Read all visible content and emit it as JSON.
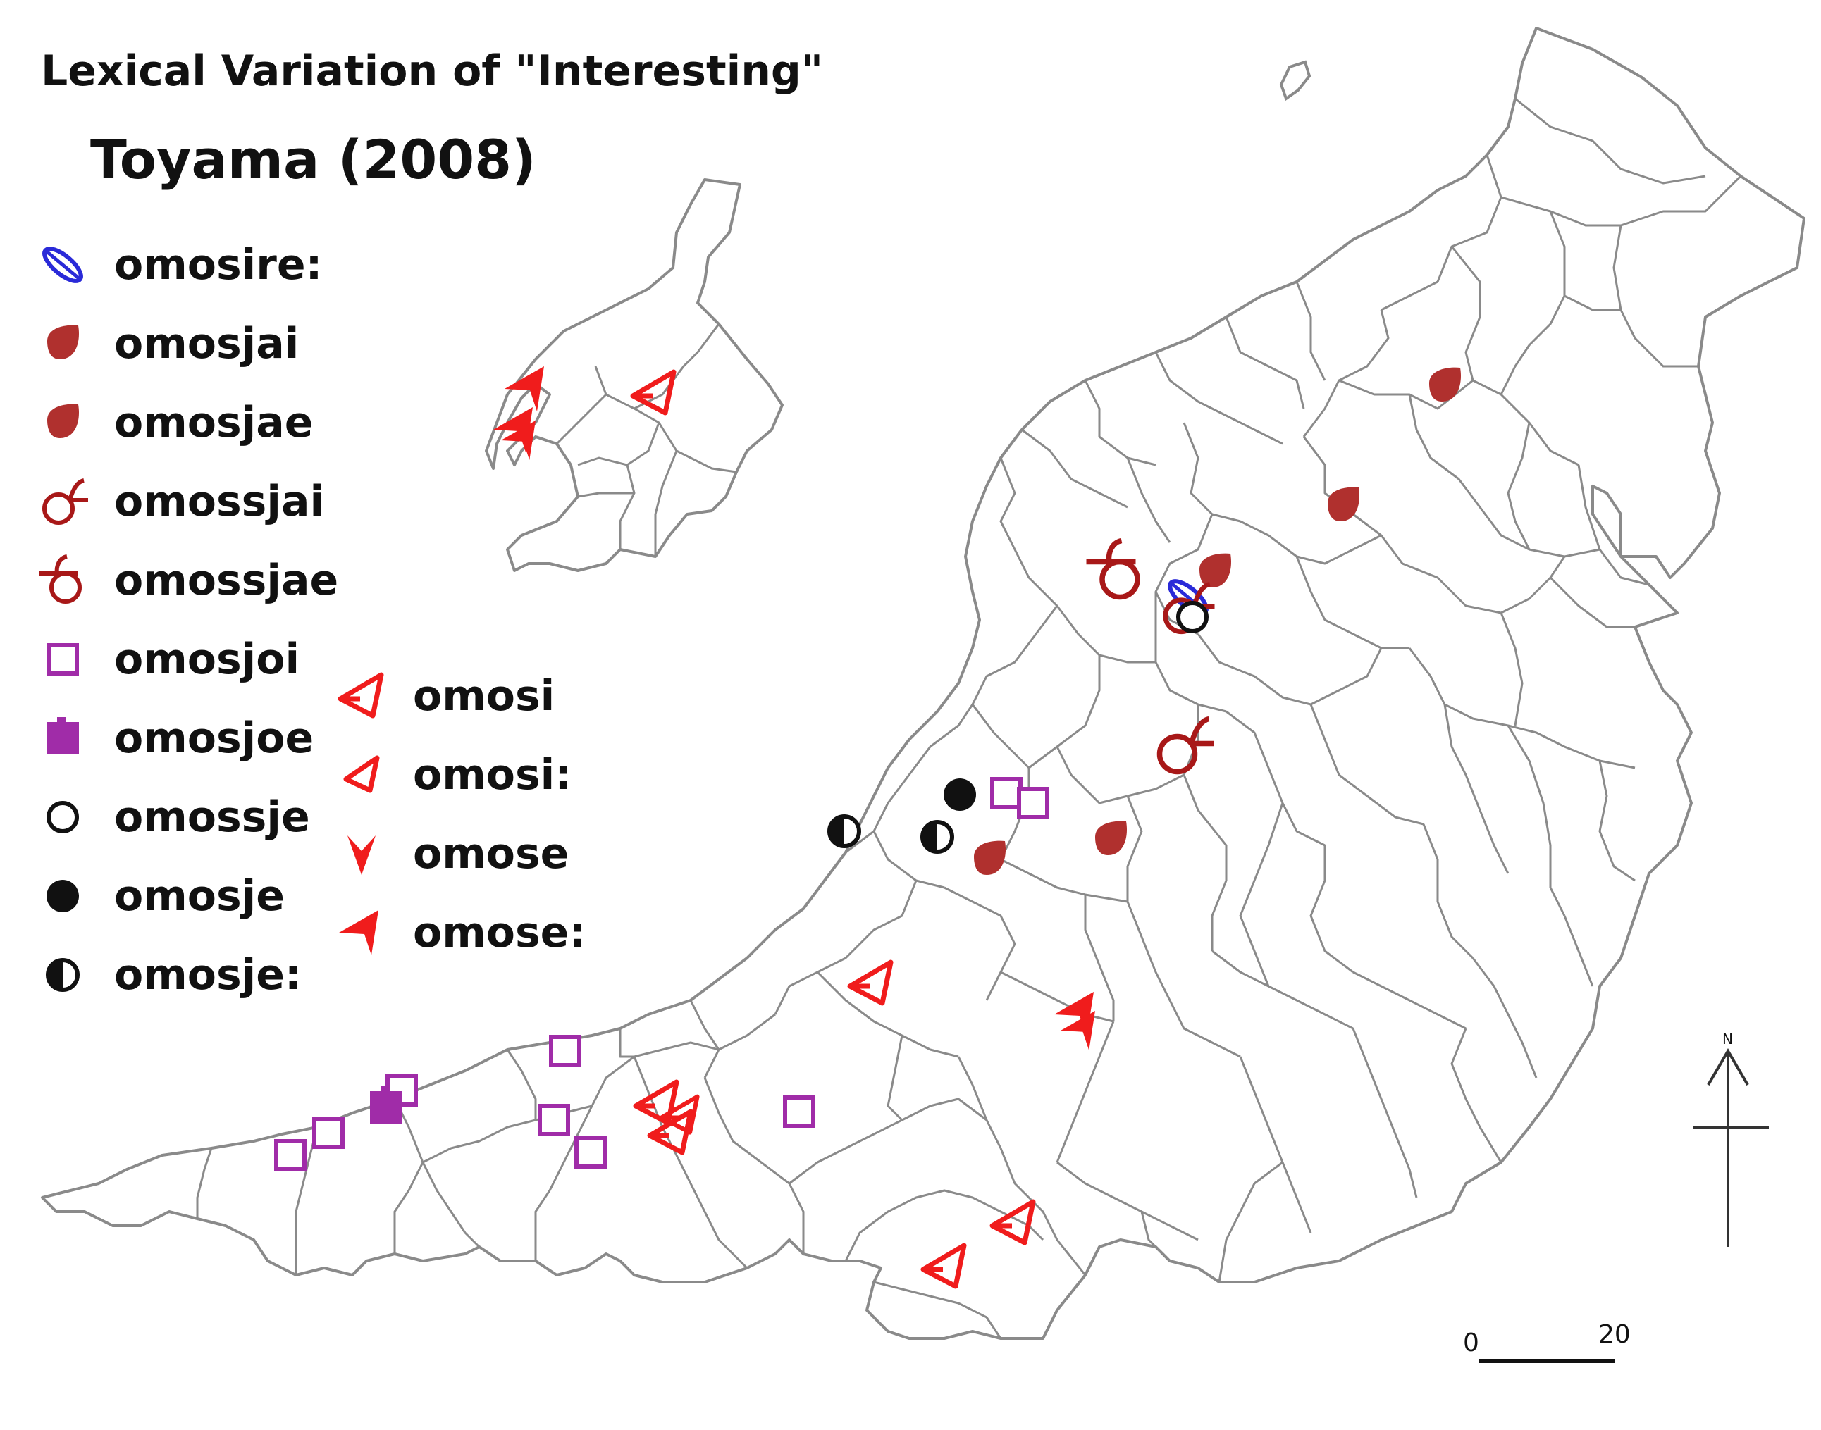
{
  "title": "Lexical Variation of \"Interesting\"",
  "subtitle": "Toyama (2008)",
  "legend": [
    {
      "label": "omosire:",
      "symbol": "blue-leaf-icon",
      "color": "#2a2ad8"
    },
    {
      "label": "omosjai",
      "symbol": "filled-drop-icon",
      "color": "#b0302e"
    },
    {
      "label": "omosjae",
      "symbol": "filled-drop-icon",
      "color": "#b0302e"
    },
    {
      "label": "omossjai",
      "symbol": "loop-hook-icon",
      "color": "#a81818"
    },
    {
      "label": "omossjae",
      "symbol": "loop-ring-icon",
      "color": "#a81818"
    },
    {
      "label": "omosjoi",
      "symbol": "open-square-icon",
      "color": "#a02ca8"
    },
    {
      "label": "omosjoe",
      "symbol": "filled-square-icon",
      "color": "#a02ca8"
    },
    {
      "label": "omossje",
      "symbol": "open-circle-icon",
      "color": "#111111"
    },
    {
      "label": "omosje",
      "symbol": "filled-circle-icon",
      "color": "#111111"
    },
    {
      "label": "omosje:",
      "symbol": "half-circle-icon",
      "color": "#111111"
    },
    {
      "label": "omosi",
      "symbol": "open-arrowhead-icon",
      "color": "#f01c1c"
    },
    {
      "label": "omosi:",
      "symbol": "small-arrowhead-icon",
      "color": "#f01c1c"
    },
    {
      "label": "omose",
      "symbol": "down-arrowhead-icon",
      "color": "#f01c1c"
    },
    {
      "label": "omose:",
      "symbol": "filled-arrowhead-icon",
      "color": "#f01c1c"
    }
  ],
  "scale_bar": {
    "start": "0",
    "end": "20"
  },
  "north_label": "N",
  "colors": {
    "boundary": "#8a8a8a",
    "land": "#ffffff"
  }
}
